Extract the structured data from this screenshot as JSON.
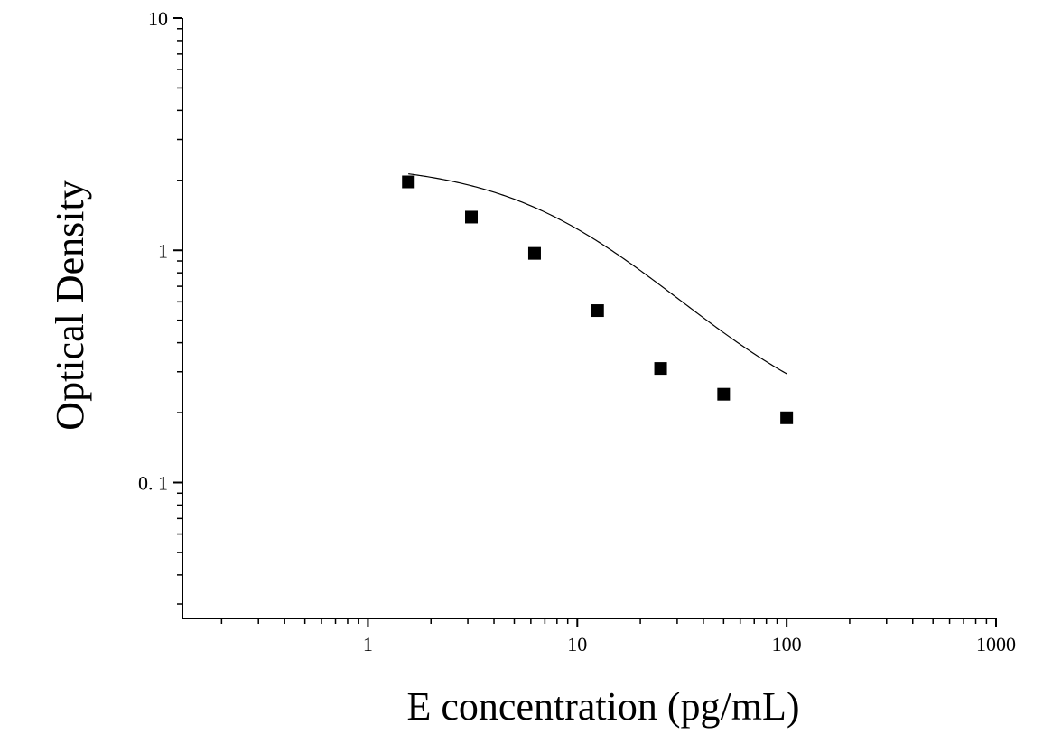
{
  "chart_data": {
    "type": "scatter",
    "xlabel": "E concentration (pg/mL)",
    "ylabel": "Optical Density",
    "xscale": "log",
    "yscale": "log",
    "xlim": [
      0.13,
      1000
    ],
    "ylim": [
      0.026,
      10
    ],
    "x_ticks": [
      {
        "value": 1,
        "label": "1"
      },
      {
        "value": 10,
        "label": "10"
      },
      {
        "value": 100,
        "label": "100"
      },
      {
        "value": 1000,
        "label": "1000"
      }
    ],
    "y_ticks": [
      {
        "value": 0.1,
        "label": "0. 1"
      },
      {
        "value": 1,
        "label": "1"
      },
      {
        "value": 10,
        "label": "10"
      }
    ],
    "grid": false,
    "series": [
      {
        "marker": "square",
        "color": "#000000",
        "points": [
          {
            "x": 1.56,
            "y": 1.97
          },
          {
            "x": 3.12,
            "y": 1.39
          },
          {
            "x": 6.25,
            "y": 0.97
          },
          {
            "x": 12.5,
            "y": 0.55
          },
          {
            "x": 25,
            "y": 0.31
          },
          {
            "x": 50,
            "y": 0.24
          },
          {
            "x": 100,
            "y": 0.19
          }
        ]
      }
    ],
    "fit_curve": {
      "type": "4PL",
      "color": "#000000",
      "x_range": [
        1.56,
        100
      ],
      "top": 2.38,
      "bottom": 0.155,
      "ec50": 9.5,
      "slope": 1.15
    }
  }
}
